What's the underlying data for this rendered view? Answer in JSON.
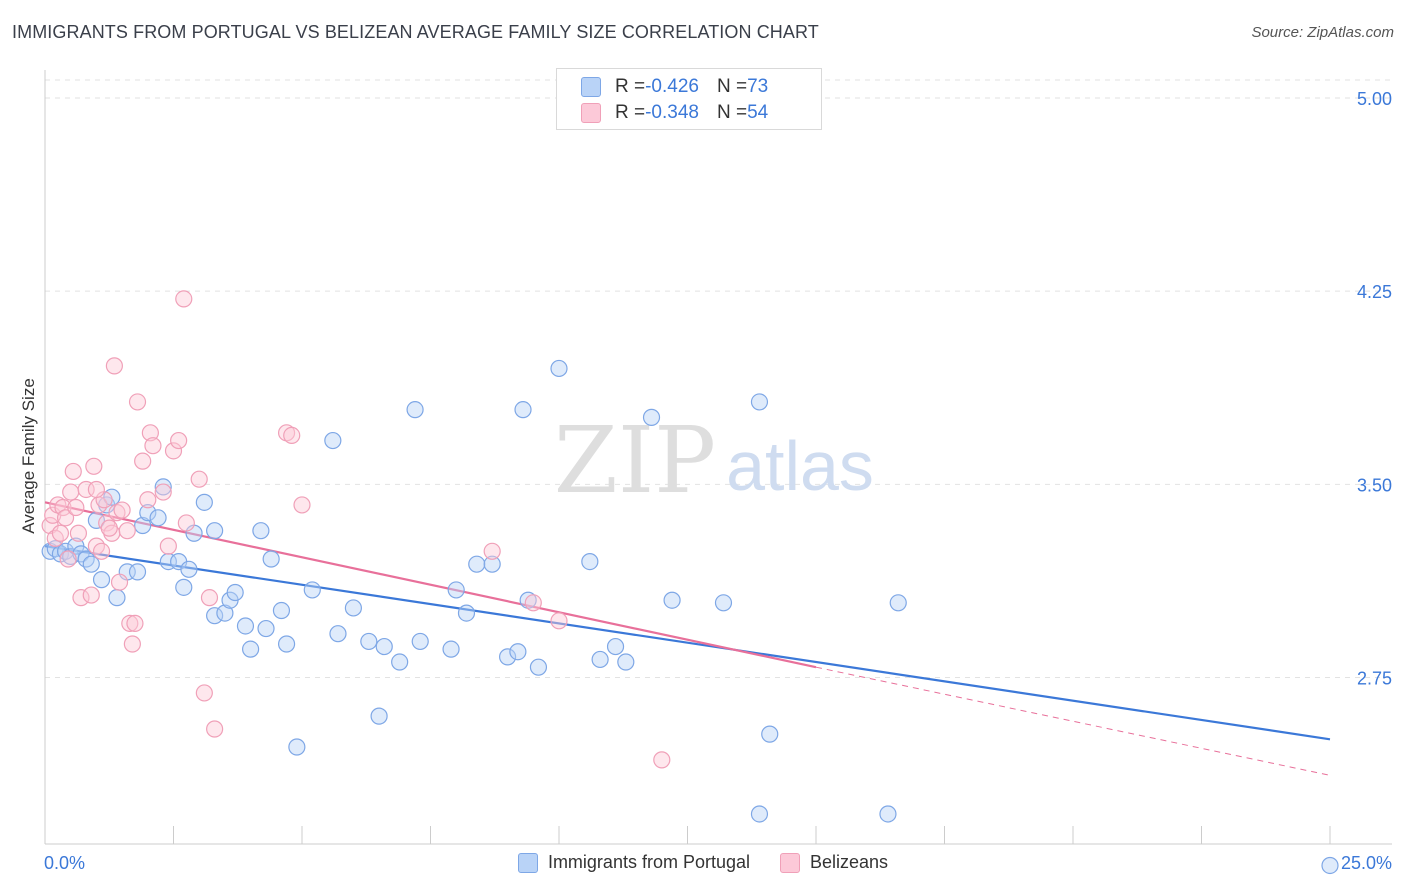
{
  "title": "IMMIGRANTS FROM PORTUGAL VS BELIZEAN AVERAGE FAMILY SIZE CORRELATION CHART",
  "source": "Source: ZipAtlas.com",
  "watermark": {
    "zip": "ZIP",
    "atlas": "atlas"
  },
  "legend_top": {
    "rows": [
      {
        "r_label": "R = ",
        "r_value": "-0.426",
        "n_label": "N = ",
        "n_value": "73"
      },
      {
        "r_label": "R = ",
        "r_value": "-0.348",
        "n_label": "N = ",
        "n_value": "54"
      }
    ]
  },
  "chart_data": {
    "type": "scatter",
    "ylabel": "Average Family Size",
    "xlim": [
      0,
      25
    ],
    "ylim": [
      2.15,
      5.07
    ],
    "x_tick_labels": [
      "0.0%",
      "25.0%"
    ],
    "y_ticks": [
      2.75,
      3.5,
      4.25,
      5.0
    ],
    "y_tick_labels": [
      "2.75",
      "3.50",
      "4.25",
      "5.00"
    ],
    "grid": true,
    "legend_position": "bottom",
    "colors": {
      "blue": "#3b78d8",
      "blue_fill": "#b9d3f7",
      "pink": "#e8709a",
      "pink_fill": "#fcc9d8",
      "tick_label": "#3b78d8"
    },
    "series": [
      {
        "name": "Immigrants from Portugal",
        "color": "#3b78d8",
        "trend": {
          "x0": 0,
          "y0": 3.26,
          "x1": 25,
          "y1": 2.51
        },
        "points": [
          [
            0.1,
            3.24
          ],
          [
            0.2,
            3.25
          ],
          [
            0.3,
            3.23
          ],
          [
            0.4,
            3.24
          ],
          [
            0.5,
            3.22
          ],
          [
            0.6,
            3.26
          ],
          [
            0.7,
            3.23
          ],
          [
            0.8,
            3.21
          ],
          [
            0.9,
            3.19
          ],
          [
            1.0,
            3.36
          ],
          [
            1.1,
            3.13
          ],
          [
            1.2,
            3.42
          ],
          [
            1.3,
            3.45
          ],
          [
            1.4,
            3.06
          ],
          [
            1.6,
            3.16
          ],
          [
            1.8,
            3.16
          ],
          [
            1.9,
            3.34
          ],
          [
            2.0,
            3.39
          ],
          [
            2.2,
            3.37
          ],
          [
            2.3,
            3.49
          ],
          [
            2.4,
            3.2
          ],
          [
            2.6,
            3.2
          ],
          [
            2.7,
            3.1
          ],
          [
            2.8,
            3.17
          ],
          [
            2.9,
            3.31
          ],
          [
            3.1,
            3.43
          ],
          [
            3.3,
            3.32
          ],
          [
            3.3,
            2.99
          ],
          [
            3.5,
            3.0
          ],
          [
            3.6,
            3.05
          ],
          [
            3.7,
            3.08
          ],
          [
            3.9,
            2.95
          ],
          [
            4.0,
            2.86
          ],
          [
            4.2,
            3.32
          ],
          [
            4.3,
            2.94
          ],
          [
            4.4,
            3.21
          ],
          [
            4.6,
            3.01
          ],
          [
            4.7,
            2.88
          ],
          [
            4.9,
            2.48
          ],
          [
            5.2,
            3.09
          ],
          [
            5.6,
            3.67
          ],
          [
            5.7,
            2.92
          ],
          [
            6.0,
            3.02
          ],
          [
            6.3,
            2.89
          ],
          [
            6.5,
            2.6
          ],
          [
            6.6,
            2.87
          ],
          [
            6.9,
            2.81
          ],
          [
            7.2,
            3.79
          ],
          [
            7.3,
            2.89
          ],
          [
            7.9,
            2.86
          ],
          [
            8.0,
            3.09
          ],
          [
            8.2,
            3.0
          ],
          [
            8.4,
            3.19
          ],
          [
            8.7,
            3.19
          ],
          [
            9.0,
            2.83
          ],
          [
            9.2,
            2.85
          ],
          [
            9.3,
            3.79
          ],
          [
            9.4,
            3.05
          ],
          [
            9.6,
            2.79
          ],
          [
            10.0,
            3.95
          ],
          [
            10.6,
            3.2
          ],
          [
            10.8,
            2.82
          ],
          [
            11.1,
            2.87
          ],
          [
            11.3,
            2.81
          ],
          [
            11.8,
            3.76
          ],
          [
            12.2,
            3.05
          ],
          [
            13.2,
            3.04
          ],
          [
            13.9,
            3.82
          ],
          [
            14.1,
            2.53
          ],
          [
            13.9,
            2.22
          ],
          [
            16.6,
            3.04
          ],
          [
            16.4,
            2.22
          ],
          [
            25.0,
            2.02
          ]
        ]
      },
      {
        "name": "Belizeans",
        "color": "#e8709a",
        "trend": {
          "x0": 0,
          "y0": 3.43,
          "x1": 15,
          "y1": 2.79,
          "dash_x1": 25,
          "dash_y1": 2.37
        },
        "points": [
          [
            0.1,
            3.34
          ],
          [
            0.15,
            3.38
          ],
          [
            0.2,
            3.29
          ],
          [
            0.25,
            3.42
          ],
          [
            0.3,
            3.31
          ],
          [
            0.35,
            3.41
          ],
          [
            0.4,
            3.37
          ],
          [
            0.5,
            3.47
          ],
          [
            0.55,
            3.55
          ],
          [
            0.6,
            3.41
          ],
          [
            0.65,
            3.31
          ],
          [
            0.7,
            3.06
          ],
          [
            0.8,
            3.48
          ],
          [
            0.9,
            3.07
          ],
          [
            1.0,
            3.26
          ],
          [
            1.05,
            3.42
          ],
          [
            1.1,
            3.24
          ],
          [
            1.15,
            3.44
          ],
          [
            1.2,
            3.35
          ],
          [
            1.3,
            3.31
          ],
          [
            1.35,
            3.96
          ],
          [
            1.4,
            3.39
          ],
          [
            1.45,
            3.12
          ],
          [
            1.5,
            3.4
          ],
          [
            1.6,
            3.32
          ],
          [
            1.65,
            2.96
          ],
          [
            1.7,
            2.88
          ],
          [
            1.8,
            3.82
          ],
          [
            1.9,
            3.59
          ],
          [
            2.0,
            3.44
          ],
          [
            2.05,
            3.7
          ],
          [
            2.1,
            3.65
          ],
          [
            2.3,
            3.47
          ],
          [
            2.4,
            3.26
          ],
          [
            2.5,
            3.63
          ],
          [
            2.6,
            3.67
          ],
          [
            2.7,
            4.22
          ],
          [
            2.75,
            3.35
          ],
          [
            3.0,
            3.52
          ],
          [
            3.1,
            2.69
          ],
          [
            3.2,
            3.06
          ],
          [
            3.3,
            2.55
          ],
          [
            4.7,
            3.7
          ],
          [
            4.8,
            3.69
          ],
          [
            5.0,
            3.42
          ],
          [
            8.7,
            3.24
          ],
          [
            9.5,
            3.04
          ],
          [
            10.0,
            2.97
          ],
          [
            12.0,
            2.43
          ],
          [
            1.0,
            3.48
          ],
          [
            0.45,
            3.21
          ],
          [
            1.75,
            2.96
          ],
          [
            1.25,
            3.33
          ],
          [
            0.95,
            3.57
          ]
        ]
      }
    ]
  }
}
